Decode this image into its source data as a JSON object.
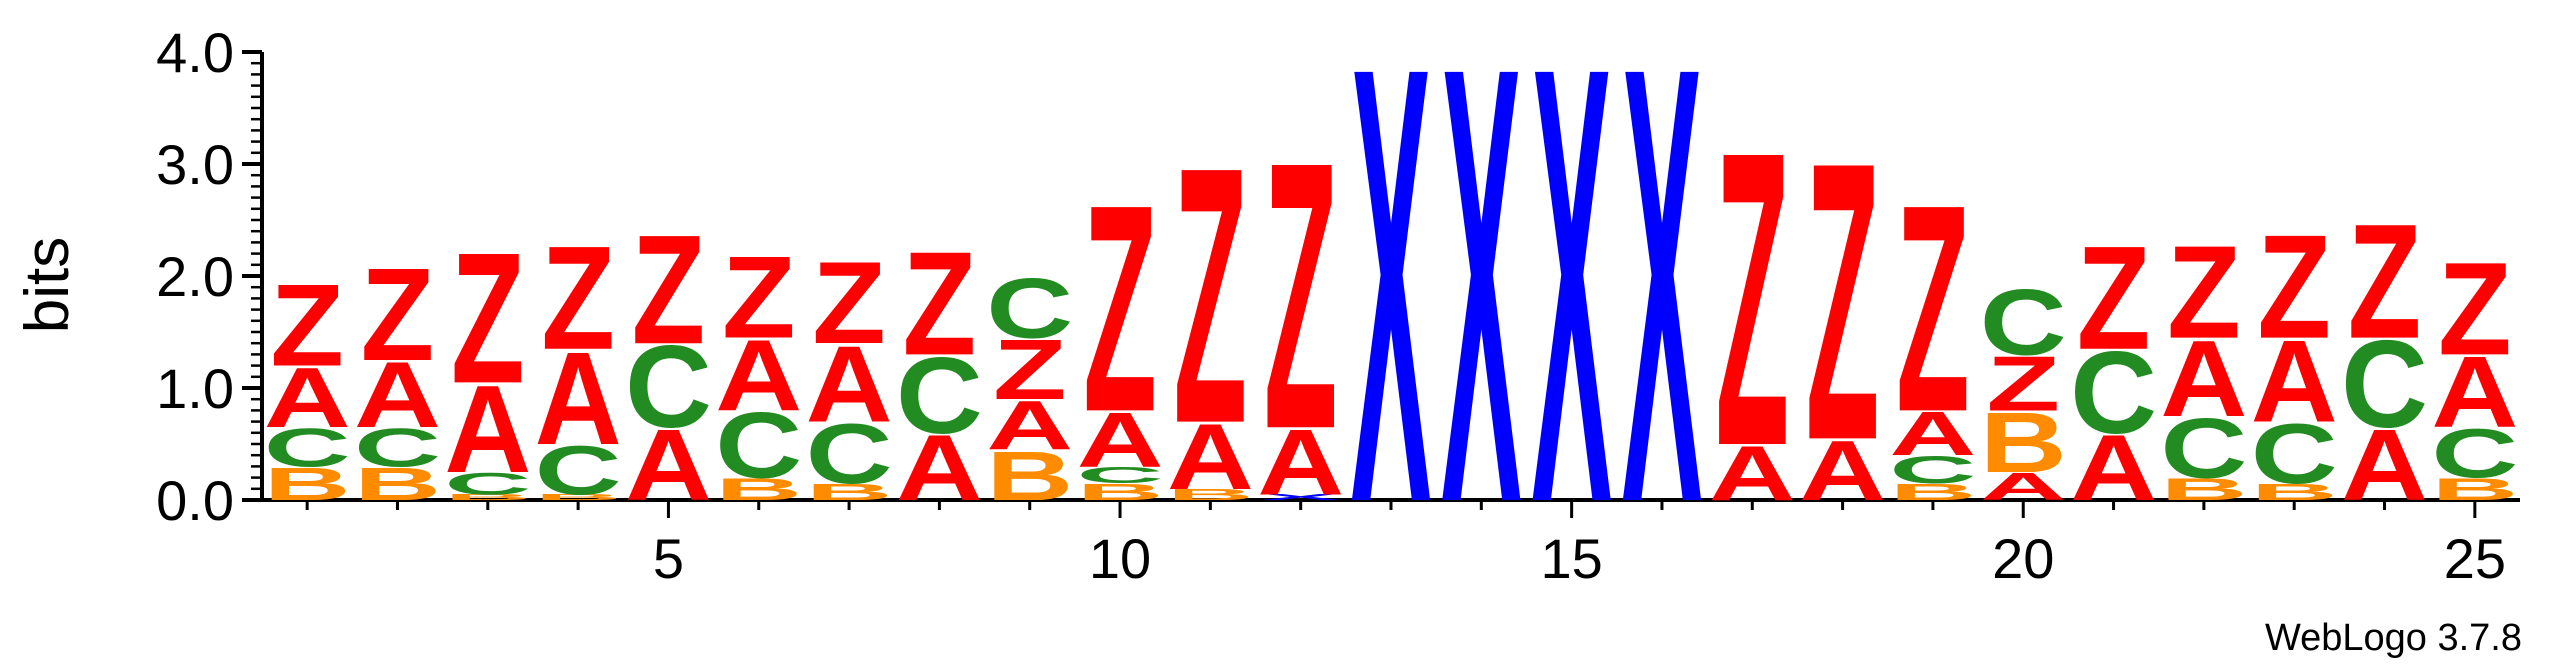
{
  "chart_data": {
    "type": "sequence-logo",
    "ylabel": "bits",
    "ylim": [
      0,
      4.0
    ],
    "y_ticks": [
      "0.0",
      "1.0",
      "2.0",
      "3.0",
      "4.0"
    ],
    "y_tick_values": [
      0,
      1,
      2,
      3,
      4
    ],
    "x_range": [
      0.5,
      25.5
    ],
    "x_ticks": [
      "5",
      "10",
      "15",
      "20",
      "25"
    ],
    "x_tick_values": [
      5,
      10,
      15,
      20,
      25
    ],
    "credit": "WebLogo 3.7.8",
    "colors": {
      "A": "#ff0000",
      "Z": "#ff0000",
      "C": "#228b22",
      "B": "#ff8c00",
      "X": "#0000ff"
    },
    "positions": [
      {
        "x": 1,
        "stack": [
          [
            "B",
            0.3
          ],
          [
            "C",
            0.35
          ],
          [
            "A",
            0.55
          ],
          [
            "Z",
            0.75
          ]
        ]
      },
      {
        "x": 2,
        "stack": [
          [
            "B",
            0.3
          ],
          [
            "C",
            0.35
          ],
          [
            "A",
            0.6
          ],
          [
            "Z",
            0.85
          ]
        ]
      },
      {
        "x": 3,
        "stack": [
          [
            "B",
            0.05
          ],
          [
            "C",
            0.2
          ],
          [
            "A",
            0.8
          ],
          [
            "Z",
            1.2
          ]
        ]
      },
      {
        "x": 4,
        "stack": [
          [
            "B",
            0.05
          ],
          [
            "C",
            0.45
          ],
          [
            "A",
            0.85
          ],
          [
            "Z",
            0.95
          ]
        ]
      },
      {
        "x": 5,
        "stack": [
          [
            "A",
            0.65
          ],
          [
            "C",
            0.75
          ],
          [
            "Z",
            1.0
          ]
        ]
      },
      {
        "x": 6,
        "stack": [
          [
            "B",
            0.2
          ],
          [
            "C",
            0.6
          ],
          [
            "A",
            0.65
          ],
          [
            "Z",
            0.75
          ]
        ]
      },
      {
        "x": 7,
        "stack": [
          [
            "B",
            0.15
          ],
          [
            "C",
            0.55
          ],
          [
            "A",
            0.7
          ],
          [
            "Z",
            0.75
          ]
        ]
      },
      {
        "x": 8,
        "stack": [
          [
            "A",
            0.6
          ],
          [
            "C",
            0.7
          ],
          [
            "Z",
            0.95
          ]
        ]
      },
      {
        "x": 9,
        "stack": [
          [
            "B",
            0.45
          ],
          [
            "A",
            0.45
          ],
          [
            "Z",
            0.55
          ],
          [
            "C",
            0.55
          ]
        ]
      },
      {
        "x": 10,
        "stack": [
          [
            "B",
            0.15
          ],
          [
            "C",
            0.15
          ],
          [
            "A",
            0.5
          ],
          [
            "Z",
            1.9
          ]
        ]
      },
      {
        "x": 11,
        "stack": [
          [
            "B",
            0.1
          ],
          [
            "A",
            0.6
          ],
          [
            "Z",
            2.35
          ]
        ]
      },
      {
        "x": 12,
        "stack": [
          [
            "X",
            0.05
          ],
          [
            "A",
            0.6
          ],
          [
            "Z",
            2.45
          ]
        ]
      },
      {
        "x": 13,
        "stack": [
          [
            "X",
            4.0
          ]
        ]
      },
      {
        "x": 14,
        "stack": [
          [
            "X",
            4.0
          ]
        ]
      },
      {
        "x": 15,
        "stack": [
          [
            "X",
            4.0
          ]
        ]
      },
      {
        "x": 16,
        "stack": [
          [
            "X",
            4.0
          ]
        ]
      },
      {
        "x": 17,
        "stack": [
          [
            "A",
            0.5
          ],
          [
            "Z",
            2.7
          ]
        ]
      },
      {
        "x": 18,
        "stack": [
          [
            "A",
            0.55
          ],
          [
            "Z",
            2.55
          ]
        ]
      },
      {
        "x": 19,
        "stack": [
          [
            "B",
            0.15
          ],
          [
            "C",
            0.25
          ],
          [
            "A",
            0.4
          ],
          [
            "Z",
            1.9
          ]
        ]
      },
      {
        "x": 20,
        "stack": [
          [
            "A",
            0.25
          ],
          [
            "B",
            0.55
          ],
          [
            "Z",
            0.5
          ],
          [
            "C",
            0.6
          ]
        ]
      },
      {
        "x": 21,
        "stack": [
          [
            "A",
            0.6
          ],
          [
            "C",
            0.75
          ],
          [
            "Z",
            0.95
          ]
        ]
      },
      {
        "x": 22,
        "stack": [
          [
            "B",
            0.2
          ],
          [
            "C",
            0.55
          ],
          [
            "A",
            0.7
          ],
          [
            "Z",
            0.85
          ]
        ]
      },
      {
        "x": 23,
        "stack": [
          [
            "B",
            0.15
          ],
          [
            "C",
            0.55
          ],
          [
            "A",
            0.75
          ],
          [
            "Z",
            0.95
          ]
        ]
      },
      {
        "x": 24,
        "stack": [
          [
            "A",
            0.65
          ],
          [
            "C",
            0.8
          ],
          [
            "Z",
            1.05
          ]
        ]
      },
      {
        "x": 25,
        "stack": [
          [
            "B",
            0.2
          ],
          [
            "C",
            0.45
          ],
          [
            "A",
            0.65
          ],
          [
            "Z",
            0.85
          ]
        ]
      }
    ]
  }
}
